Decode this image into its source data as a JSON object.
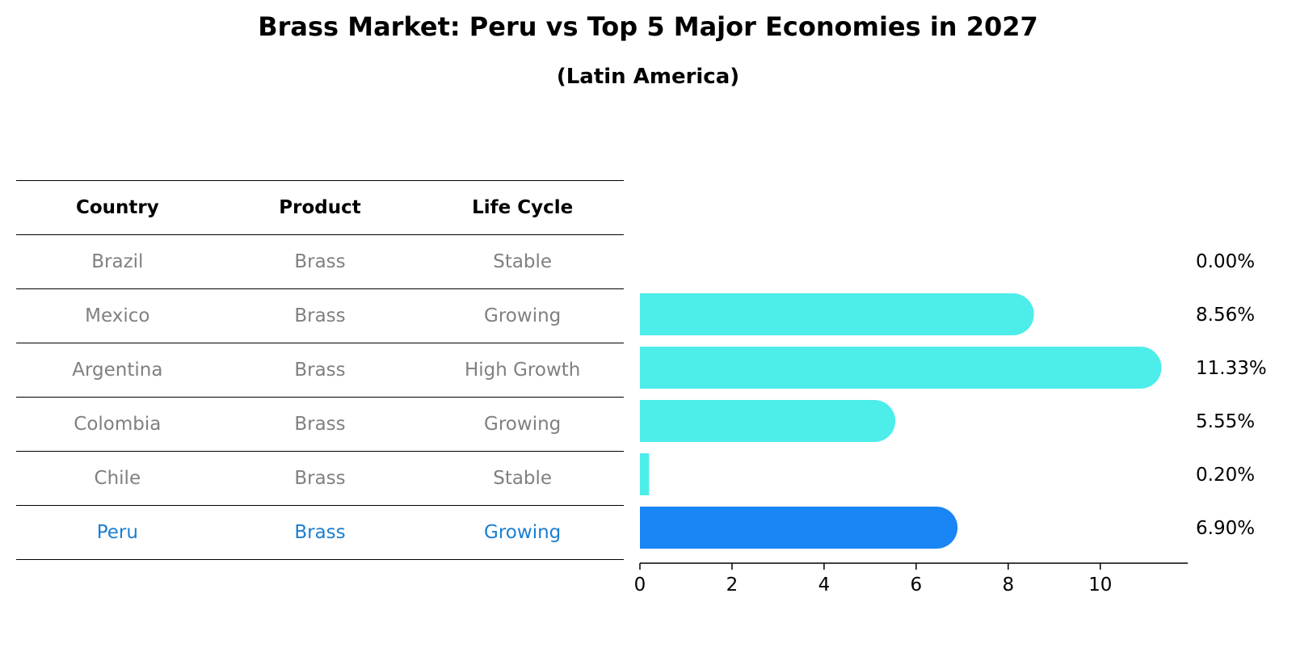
{
  "title": "Brass Market: Peru vs Top 5 Major Economies in 2027",
  "subtitle": "(Latin America)",
  "table": {
    "headers": [
      "Country",
      "Product",
      "Life Cycle"
    ],
    "rows": [
      {
        "country": "Brazil",
        "product": "Brass",
        "life_cycle": "Stable"
      },
      {
        "country": "Mexico",
        "product": "Brass",
        "life_cycle": "Growing"
      },
      {
        "country": "Argentina",
        "product": "Brass",
        "life_cycle": "High Growth"
      },
      {
        "country": "Colombia",
        "product": "Brass",
        "life_cycle": "Growing"
      },
      {
        "country": "Chile",
        "product": "Brass",
        "life_cycle": "Stable"
      },
      {
        "country": "Peru",
        "product": "Brass",
        "life_cycle": "Growing"
      }
    ],
    "highlight_country": "Peru"
  },
  "colors": {
    "bar": "#4dedea",
    "highlight_bar": "#1a85f5",
    "row_text": "#808080",
    "highlight_text": "#1a7fd1"
  },
  "chart_data": {
    "type": "bar",
    "orientation": "horizontal",
    "categories": [
      "Brazil",
      "Mexico",
      "Argentina",
      "Colombia",
      "Chile",
      "Peru"
    ],
    "values": [
      0.0,
      8.56,
      11.33,
      5.55,
      0.2,
      6.9
    ],
    "value_labels": [
      "0.00%",
      "8.56%",
      "11.33%",
      "5.55%",
      "0.20%",
      "6.90%"
    ],
    "xlim": [
      0,
      11.9
    ],
    "xticks": [
      0,
      2,
      4,
      6,
      8,
      10
    ],
    "highlight": "Peru",
    "grid": false
  }
}
